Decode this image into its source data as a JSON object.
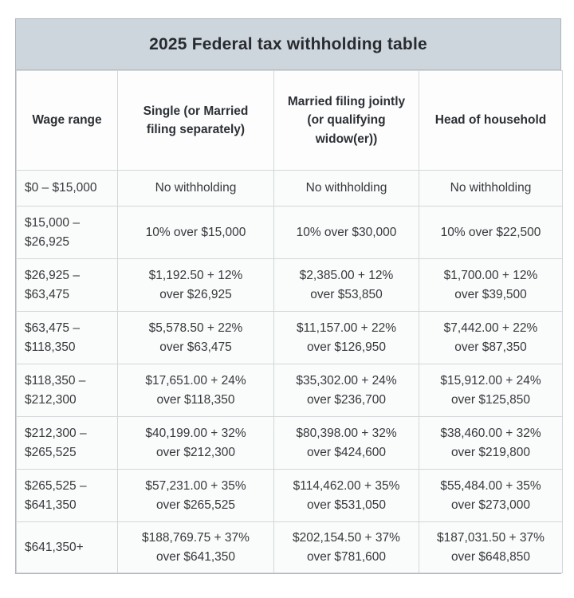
{
  "colors": {
    "title_band_bg": "#cdd6dc",
    "outer_border": "#aeb5b9",
    "cell_border": "#d3d7d9",
    "cell_bg": "#fafbfb",
    "header_bg": "#fdfdfe",
    "text": "#36393c"
  },
  "header_display": [
    "Wage range",
    "Single (or Married\nfiling separately)",
    "Married filing jointly\n(or qualifying\nwidow(er))",
    "Head of household"
  ],
  "chart_data": {
    "type": "table",
    "title": "2025 Federal tax withholding table",
    "columns": [
      "Wage range",
      "Single (or Married filing separately)",
      "Married filing jointly (or qualifying widow(er))",
      "Head of household"
    ],
    "rows": [
      [
        "$0 – $15,000",
        "No withholding",
        "No withholding",
        "No withholding"
      ],
      [
        "$15,000 –\n$26,925",
        "10% over $15,000",
        "10% over $30,000",
        "10% over $22,500"
      ],
      [
        "$26,925 –\n$63,475",
        "$1,192.50 + 12%\nover $26,925",
        "$2,385.00 + 12%\nover $53,850",
        "$1,700.00 + 12%\nover $39,500"
      ],
      [
        "$63,475 –\n$118,350",
        "$5,578.50 + 22%\nover $63,475",
        "$11,157.00 + 22%\nover $126,950",
        "$7,442.00 + 22%\nover $87,350"
      ],
      [
        "$118,350 –\n$212,300",
        "$17,651.00 + 24%\nover $118,350",
        "$35,302.00 + 24%\nover $236,700",
        "$15,912.00 + 24%\nover $125,850"
      ],
      [
        "$212,300 –\n$265,525",
        "$40,199.00 + 32%\nover $212,300",
        "$80,398.00 + 32%\nover $424,600",
        "$38,460.00 + 32%\nover $219,800"
      ],
      [
        "$265,525 –\n$641,350",
        "$57,231.00 + 35%\nover $265,525",
        "$114,462.00 + 35%\nover $531,050",
        "$55,484.00 + 35%\nover $273,000"
      ],
      [
        "$641,350+",
        "$188,769.75 + 37%\nover $641,350",
        "$202,154.50 + 37%\nover $781,600",
        "$187,031.50 + 37%\nover $648,850"
      ]
    ]
  }
}
